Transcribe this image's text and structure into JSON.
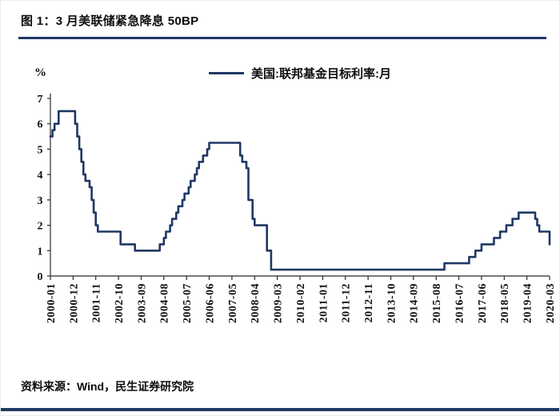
{
  "page": {
    "title": "图 1：3 月美联储紧急降息 50BP",
    "source_note": "资料来源：Wind，民生证券研究院",
    "accent_color": "#1f3864"
  },
  "chart_data": {
    "type": "line",
    "style": "step",
    "title": "图 1：3 月美联储紧急降息 50BP",
    "ylabel": "%",
    "xlabel": "",
    "ylim": [
      0,
      7
    ],
    "yticks": [
      0,
      1,
      2,
      3,
      4,
      5,
      6,
      7
    ],
    "grid": false,
    "legend_position": "top",
    "x_type": "month",
    "x_range": [
      "2000-01",
      "2020-03"
    ],
    "x_tick_rotation": 90,
    "xticks": [
      "2000-01",
      "2000-12",
      "2001-11",
      "2002-10",
      "2003-09",
      "2004-08",
      "2005-07",
      "2006-06",
      "2007-05",
      "2008-04",
      "2009-03",
      "2010-02",
      "2011-01",
      "2011-12",
      "2012-11",
      "2013-10",
      "2014-09",
      "2015-08",
      "2016-07",
      "2017-06",
      "2018-05",
      "2019-04",
      "2020-03"
    ],
    "line_color": "#1f3864",
    "series": [
      {
        "name": "美国:联邦基金目标利率:月",
        "step_points": [
          [
            "2000-01",
            5.5
          ],
          [
            "2000-02",
            5.75
          ],
          [
            "2000-03",
            6.0
          ],
          [
            "2000-05",
            6.5
          ],
          [
            "2001-01",
            6.0
          ],
          [
            "2001-02",
            5.5
          ],
          [
            "2001-03",
            5.0
          ],
          [
            "2001-04",
            4.5
          ],
          [
            "2001-05",
            4.0
          ],
          [
            "2001-06",
            3.75
          ],
          [
            "2001-08",
            3.5
          ],
          [
            "2001-09",
            3.0
          ],
          [
            "2001-10",
            2.5
          ],
          [
            "2001-11",
            2.0
          ],
          [
            "2001-12",
            1.75
          ],
          [
            "2002-11",
            1.25
          ],
          [
            "2003-06",
            1.0
          ],
          [
            "2004-06",
            1.25
          ],
          [
            "2004-08",
            1.5
          ],
          [
            "2004-09",
            1.75
          ],
          [
            "2004-11",
            2.0
          ],
          [
            "2004-12",
            2.25
          ],
          [
            "2005-02",
            2.5
          ],
          [
            "2005-03",
            2.75
          ],
          [
            "2005-05",
            3.0
          ],
          [
            "2005-06",
            3.25
          ],
          [
            "2005-08",
            3.5
          ],
          [
            "2005-09",
            3.75
          ],
          [
            "2005-11",
            4.0
          ],
          [
            "2005-12",
            4.25
          ],
          [
            "2006-01",
            4.5
          ],
          [
            "2006-03",
            4.75
          ],
          [
            "2006-05",
            5.0
          ],
          [
            "2006-06",
            5.25
          ],
          [
            "2007-09",
            4.75
          ],
          [
            "2007-10",
            4.5
          ],
          [
            "2007-12",
            4.25
          ],
          [
            "2008-01",
            3.0
          ],
          [
            "2008-03",
            2.25
          ],
          [
            "2008-04",
            2.0
          ],
          [
            "2008-10",
            1.0
          ],
          [
            "2008-12",
            0.25
          ],
          [
            "2015-12",
            0.5
          ],
          [
            "2016-12",
            0.75
          ],
          [
            "2017-03",
            1.0
          ],
          [
            "2017-06",
            1.25
          ],
          [
            "2017-12",
            1.5
          ],
          [
            "2018-03",
            1.75
          ],
          [
            "2018-06",
            2.0
          ],
          [
            "2018-09",
            2.25
          ],
          [
            "2018-12",
            2.5
          ],
          [
            "2019-08",
            2.25
          ],
          [
            "2019-09",
            2.0
          ],
          [
            "2019-10",
            1.75
          ],
          [
            "2020-03",
            1.25
          ]
        ]
      }
    ]
  }
}
